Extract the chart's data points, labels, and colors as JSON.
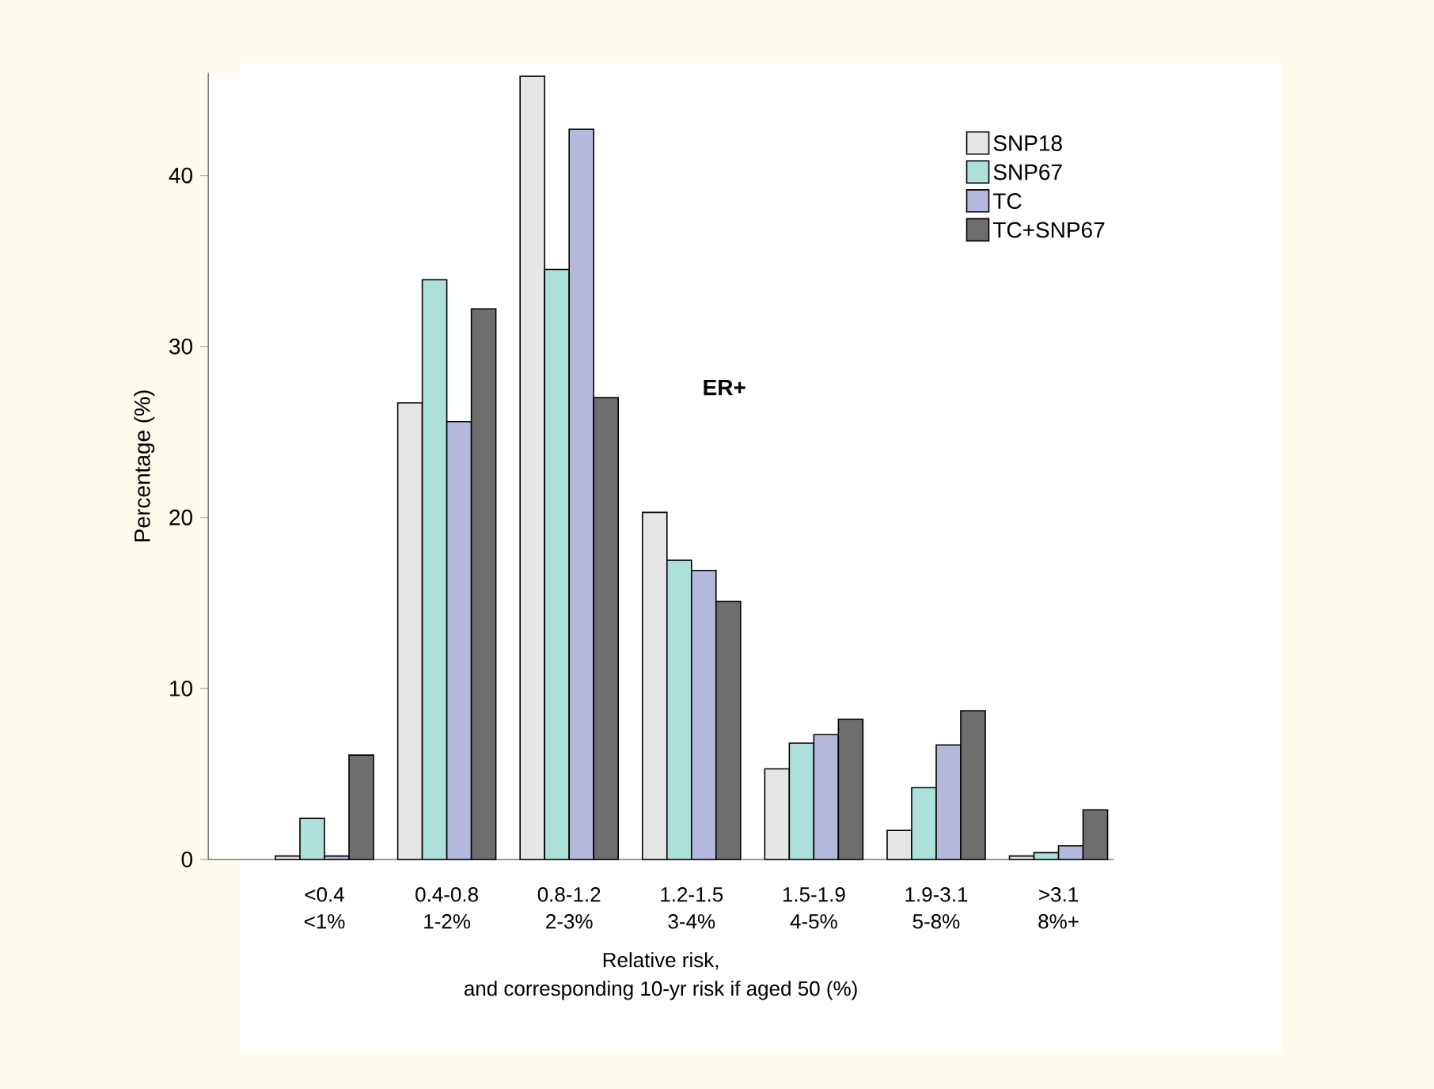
{
  "chart_data": {
    "type": "bar",
    "categories": [
      "<0.4\n<1%",
      "0.4-0.8\n1-2%",
      "0.8-1.2\n2-3%",
      "1.2-1.5\n3-4%",
      "1.5-1.9\n4-5%",
      "1.9-3.1\n5-8%",
      ">3.1\n8%+"
    ],
    "series": [
      {
        "name": "SNP18",
        "color": "#e6e6e6",
        "values": [
          0.2,
          26.7,
          45.8,
          20.3,
          5.3,
          1.7,
          0.2
        ]
      },
      {
        "name": "SNP67",
        "color": "#aee0da",
        "values": [
          2.4,
          33.9,
          34.5,
          17.5,
          6.8,
          4.2,
          0.4
        ]
      },
      {
        "name": "TC",
        "color": "#b4b8dc",
        "values": [
          0.2,
          25.6,
          42.7,
          16.9,
          7.3,
          6.7,
          0.8
        ]
      },
      {
        "name": "TC+SNP67",
        "color": "#6e6e6e",
        "values": [
          6.1,
          32.2,
          27.0,
          15.1,
          8.2,
          8.7,
          2.9
        ]
      }
    ],
    "xlabel": "Relative risk,\nand corresponding 10-yr risk if aged 50 (%)",
    "ylabel": "Percentage (%)",
    "annotations": [
      "ER+"
    ],
    "ylim": [
      0,
      46
    ],
    "yticks": [
      0,
      10,
      20,
      30,
      40
    ],
    "grid": false,
    "legend": "top right"
  }
}
